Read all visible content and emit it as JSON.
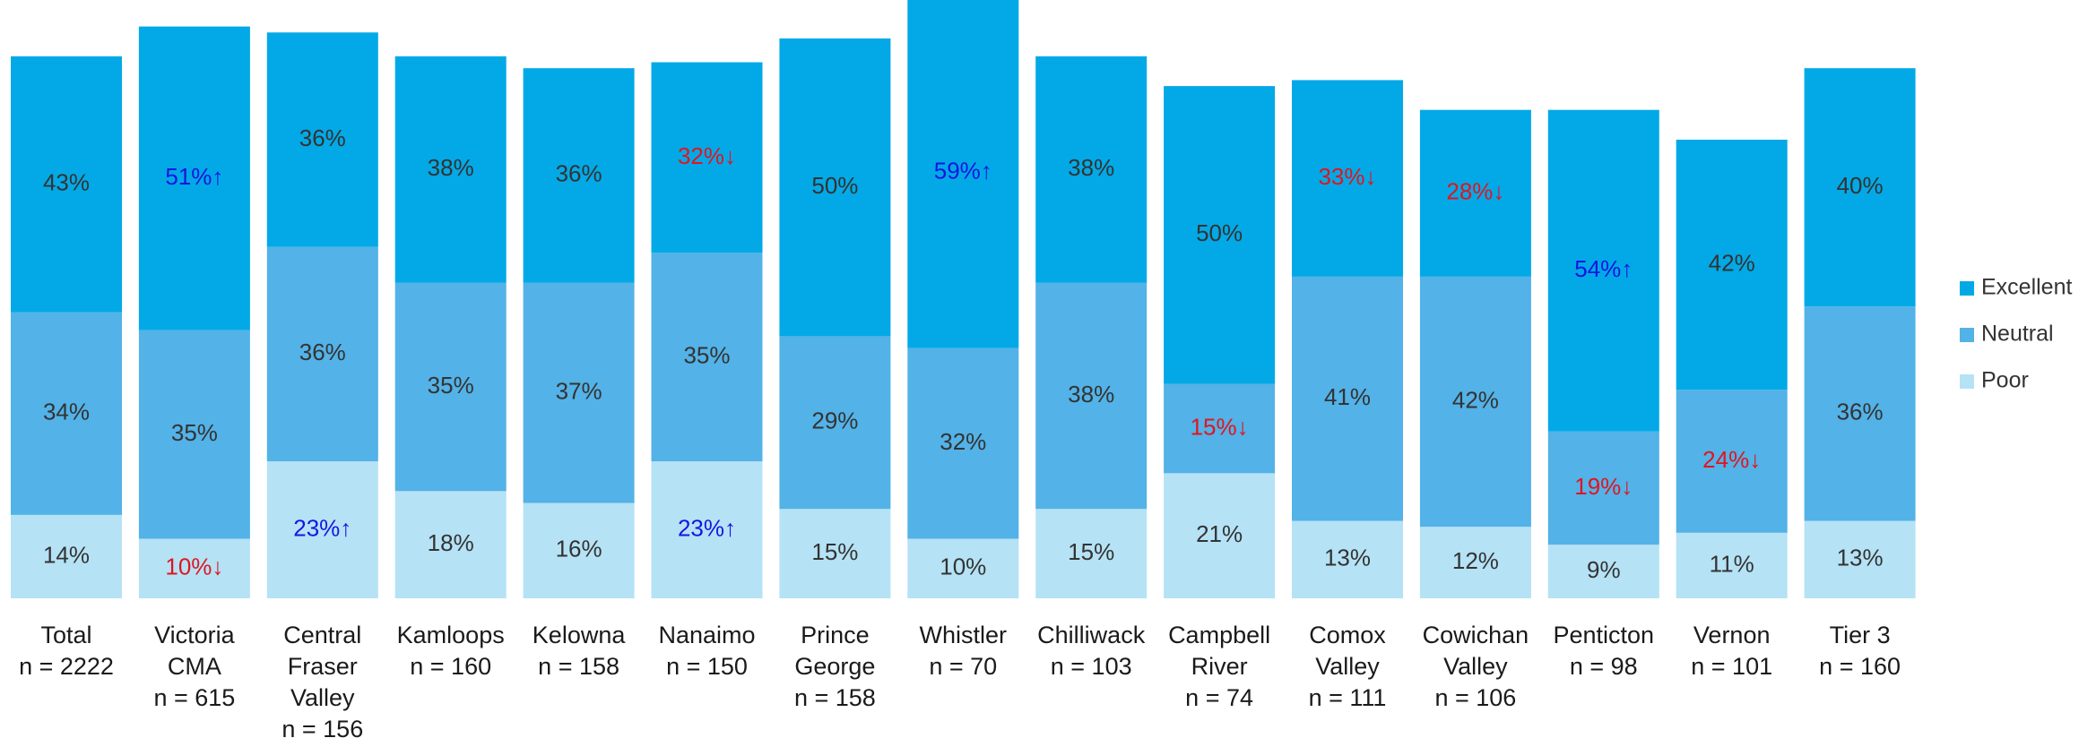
{
  "chart_data": {
    "type": "bar",
    "stacked": true,
    "categories": [
      [
        "Total",
        "n = 2222"
      ],
      [
        "Victoria",
        "CMA",
        "n = 615"
      ],
      [
        "Central",
        "Fraser",
        "Valley",
        "n = 156"
      ],
      [
        "Kamloops",
        "n = 160"
      ],
      [
        "Kelowna",
        "n = 158"
      ],
      [
        "Nanaimo",
        "n = 150"
      ],
      [
        "Prince",
        "George",
        "n = 158"
      ],
      [
        "Whistler",
        "n = 70"
      ],
      [
        "Chilliwack",
        "n = 103"
      ],
      [
        "Campbell",
        "River",
        "n = 74"
      ],
      [
        "Comox",
        "Valley",
        "n = 111"
      ],
      [
        "Cowichan",
        "Valley",
        "n = 106"
      ],
      [
        "Penticton",
        "n = 98"
      ],
      [
        "Vernon",
        "n = 101"
      ],
      [
        "Tier 3",
        "n = 160"
      ]
    ],
    "series": [
      {
        "name": "Poor",
        "color": "#b5e2f5",
        "values": [
          14,
          10,
          23,
          18,
          16,
          23,
          15,
          10,
          15,
          21,
          13,
          12,
          9,
          11,
          13
        ],
        "labels": [
          "14%",
          "10%↓",
          "23%↑",
          "18%",
          "16%",
          "23%↑",
          "15%",
          "10%",
          "15%",
          "21%",
          "13%",
          "12%",
          "9%",
          "11%",
          "13%"
        ]
      },
      {
        "name": "Neutral",
        "color": "#53b2e7",
        "values": [
          34,
          35,
          36,
          35,
          37,
          35,
          29,
          32,
          38,
          15,
          41,
          42,
          19,
          24,
          36
        ],
        "labels": [
          "34%",
          "35%",
          "36%",
          "35%",
          "37%",
          "35%",
          "29%",
          "32%",
          "38%",
          "15%↓",
          "41%",
          "42%",
          "19%↓",
          "24%↓",
          "36%"
        ]
      },
      {
        "name": "Excellent",
        "color": "#03a9e6",
        "values": [
          43,
          51,
          36,
          38,
          36,
          32,
          50,
          59,
          38,
          50,
          33,
          28,
          54,
          42,
          40
        ],
        "labels": [
          "43%",
          "51%↑",
          "36%",
          "38%",
          "36%",
          "32%↓",
          "50%",
          "59%↑",
          "38%",
          "50%",
          "33%↓",
          "28%↓",
          "54%↑",
          "42%",
          "40%"
        ]
      }
    ],
    "label_colors": {
      "normal": "#333333",
      "up": "#1515e0",
      "down": "#e0151f"
    },
    "legend": {
      "placement": "right",
      "order": [
        "Excellent",
        "Neutral",
        "Poor"
      ]
    },
    "title": "",
    "xlabel": "",
    "ylabel": "",
    "ylim": [
      0,
      100
    ]
  }
}
